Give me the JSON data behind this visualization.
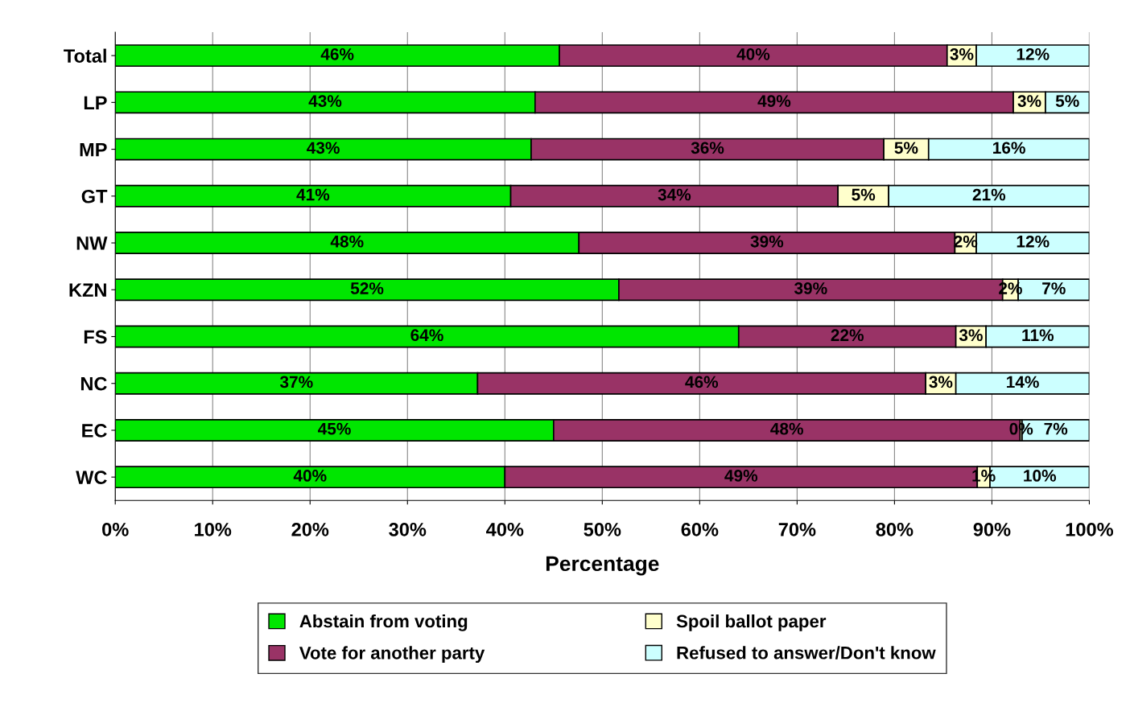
{
  "chart_data": {
    "type": "bar",
    "orientation": "horizontal",
    "stacked": true,
    "xlabel": "Percentage",
    "categories": [
      "Total",
      "LP",
      "MP",
      "GT",
      "NW",
      "KZN",
      "FS",
      "NC",
      "EC",
      "WC"
    ],
    "series": [
      {
        "name": "Abstain from voting",
        "color": "#00e600",
        "values": [
          45.6,
          43.1,
          42.7,
          40.6,
          47.6,
          51.7,
          64.0,
          37.2,
          45.0,
          40.0
        ],
        "value_labels": [
          "46%",
          "43%",
          "43%",
          "41%",
          "48%",
          "52%",
          "64%",
          "37%",
          "45%",
          "40%"
        ]
      },
      {
        "name": "Vote for another party",
        "color": "#993366",
        "values": [
          39.8,
          49.1,
          36.2,
          33.6,
          38.6,
          39.4,
          22.3,
          46.0,
          47.9,
          48.5
        ],
        "value_labels": [
          "40%",
          "49%",
          "36%",
          "34%",
          "39%",
          "39%",
          "22%",
          "46%",
          "48%",
          "49%"
        ]
      },
      {
        "name": "Spoil ballot paper",
        "color": "#ffffcc",
        "values": [
          3.0,
          3.3,
          4.6,
          5.2,
          2.2,
          1.6,
          3.1,
          3.1,
          0.2,
          1.3
        ],
        "value_labels": [
          "3%",
          "3%",
          "5%",
          "5%",
          "2%",
          "2%",
          "3%",
          "3%",
          "0%",
          "1%"
        ]
      },
      {
        "name": "Refused to answer/Don't know",
        "color": "#ccffff",
        "values": [
          11.6,
          4.5,
          16.5,
          20.6,
          11.6,
          7.3,
          10.6,
          13.7,
          6.9,
          10.2
        ],
        "value_labels": [
          "12%",
          "5%",
          "16%",
          "21%",
          "12%",
          "7%",
          "11%",
          "14%",
          "7%",
          "10%"
        ]
      }
    ],
    "xlim": [
      0,
      100
    ],
    "xticks": [
      {
        "value": 0,
        "label": "0%"
      },
      {
        "value": 10,
        "label": "10%"
      },
      {
        "value": 20,
        "label": "20%"
      },
      {
        "value": 30,
        "label": "30%"
      },
      {
        "value": 40,
        "label": "40%"
      },
      {
        "value": 50,
        "label": "50%"
      },
      {
        "value": 60,
        "label": "60%"
      },
      {
        "value": 70,
        "label": "70%"
      },
      {
        "value": 80,
        "label": "80%"
      },
      {
        "value": 90,
        "label": "90%"
      },
      {
        "value": 100,
        "label": "100%"
      }
    ],
    "grid": "x",
    "legend": "bottom"
  }
}
